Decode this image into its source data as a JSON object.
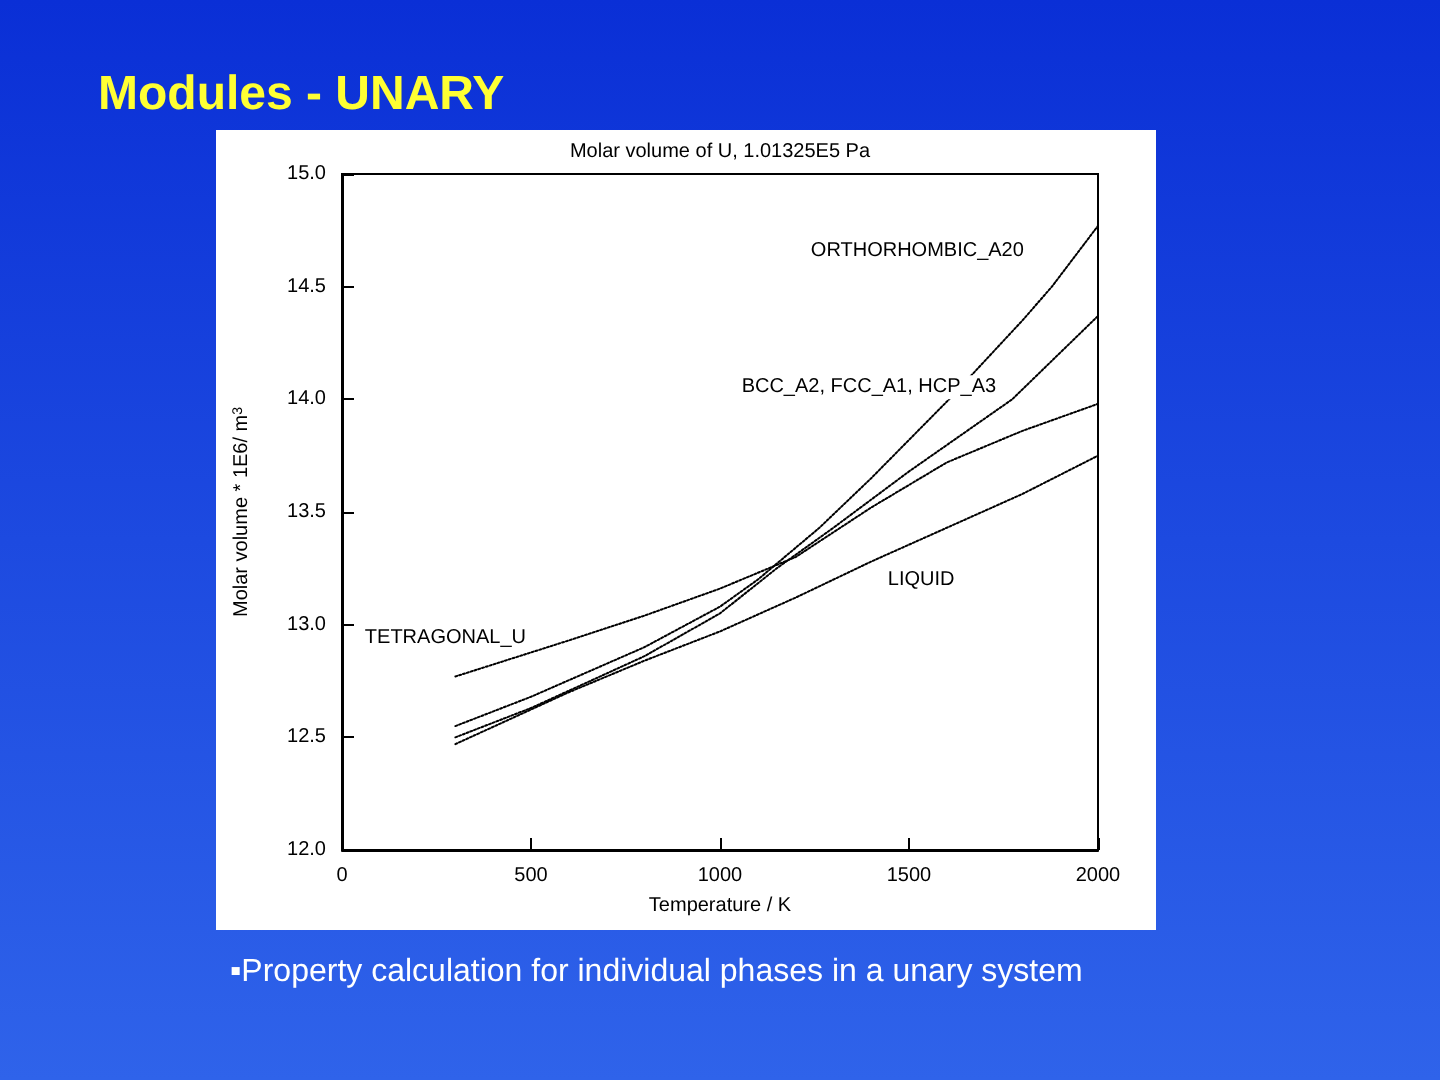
{
  "chart_data": {
    "type": "line",
    "title": "Modules - UNARY",
    "subtitle": "Molar volume of U, 1.01325E5 Pa",
    "xlabel": "Temperature / K",
    "ylabel": "Molar volume * 1E6/ m$^{3}$",
    "annotations": [
      "▪Property calculation for individual phases in a unary system"
    ],
    "xlim": [
      0,
      2000
    ],
    "xticks": [
      0,
      500,
      1000,
      1500,
      2000
    ],
    "ylim": [
      12,
      15
    ],
    "yticks": [
      {
        "value": 12,
        "label": "12.0"
      },
      12.5,
      {
        "value": 13,
        "label": "13.0"
      },
      13.5,
      {
        "value": 14,
        "label": "14.0"
      },
      14.5,
      {
        "value": 15,
        "label": "15.0"
      }
    ],
    "grid": false,
    "legend": false,
    "marker": "none",
    "line_style": "dotted",
    "series": [
      {
        "name": "ORTHORHOMBIC_A20",
        "color": "#000000",
        "x": [
          300,
          500,
          800,
          1000,
          1100,
          1263,
          1400,
          1606,
          1800,
          1878,
          2000
        ],
        "values": [
          12.55,
          12.68,
          12.9,
          13.08,
          13.2,
          13.43,
          13.65,
          14.0,
          14.35,
          14.5,
          14.77
        ]
      },
      {
        "name": "BCC_A2, FCC_A1, HCP_A3",
        "color": "#000000",
        "x": [
          300,
          500,
          800,
          1000,
          1150,
          1300,
          1500,
          1773,
          2000
        ],
        "values": [
          12.5,
          12.63,
          12.86,
          13.05,
          13.25,
          13.43,
          13.68,
          14.0,
          14.37
        ]
      },
      {
        "name": "TETRAGONAL_U",
        "color": "#000000",
        "x": [
          300,
          600,
          800,
          1000,
          1200,
          1400,
          1600,
          1800,
          2000
        ],
        "values": [
          12.77,
          12.93,
          13.04,
          13.16,
          13.3,
          13.52,
          13.72,
          13.86,
          13.98
        ]
      },
      {
        "name": "LIQUID",
        "color": "#000000",
        "x": [
          300,
          600,
          800,
          1000,
          1200,
          1400,
          1600,
          1800,
          2000
        ],
        "values": [
          12.47,
          12.7,
          12.84,
          12.97,
          13.12,
          13.28,
          13.43,
          13.58,
          13.75
        ]
      }
    ]
  }
}
